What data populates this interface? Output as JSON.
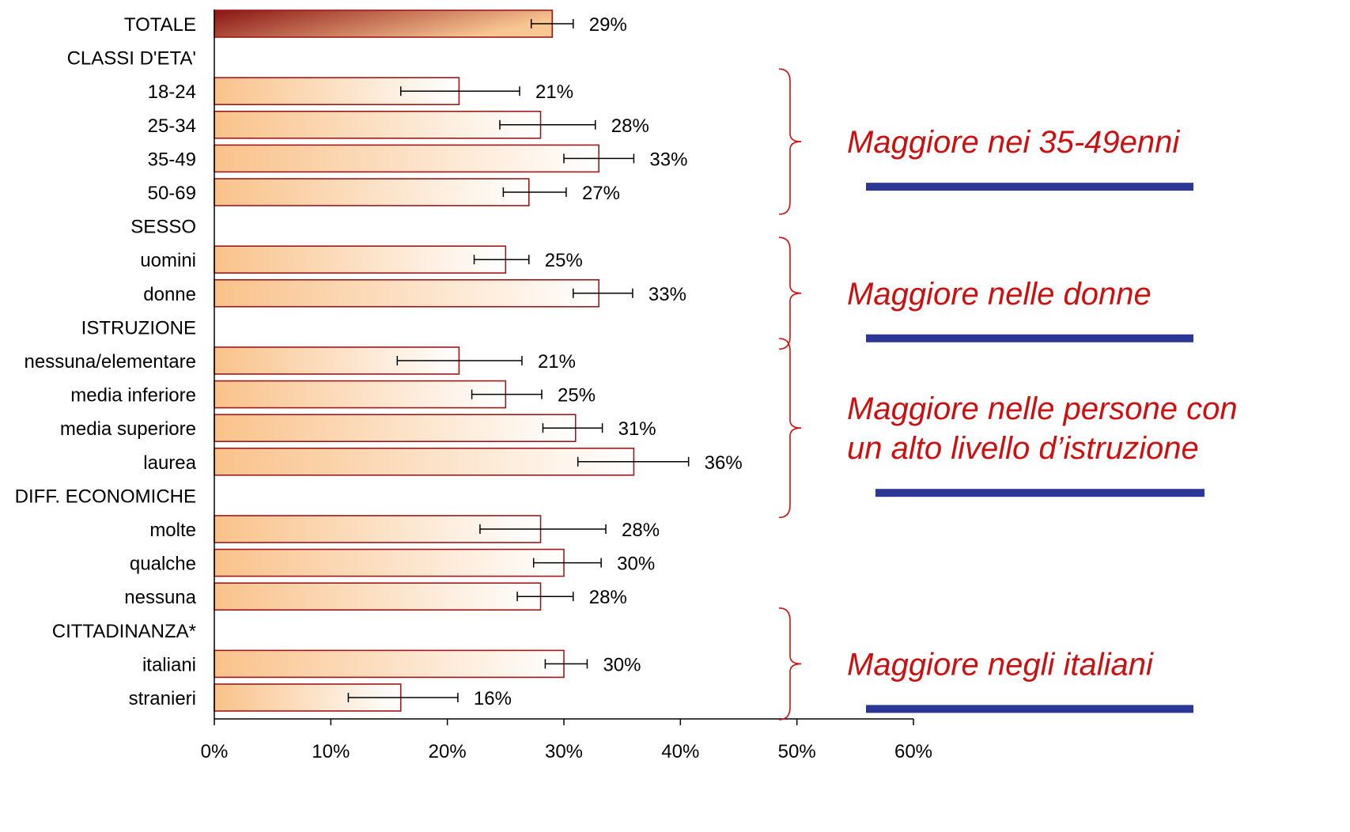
{
  "chart_data": {
    "type": "bar",
    "orientation": "horizontal",
    "title": "",
    "xlabel": "",
    "ylabel": "",
    "xlim": [
      0,
      60
    ],
    "x_ticks": [
      "0%",
      "10%",
      "20%",
      "30%",
      "40%",
      "50%",
      "60%"
    ],
    "grid": false,
    "rows": [
      {
        "label": "TOTALE",
        "value": 29,
        "value_label": "29%",
        "err_low": 27.2,
        "err_high": 30.8,
        "is_total": true
      },
      {
        "label": "CLASSI D'ETA'",
        "is_header": true
      },
      {
        "label": "18-24",
        "value": 21,
        "value_label": "21%",
        "err_low": 16,
        "err_high": 26.2
      },
      {
        "label": "25-34",
        "value": 28,
        "value_label": "28%",
        "err_low": 24.5,
        "err_high": 32.7
      },
      {
        "label": "35-49",
        "value": 33,
        "value_label": "33%",
        "err_low": 30,
        "err_high": 36
      },
      {
        "label": "50-69",
        "value": 27,
        "value_label": "27%",
        "err_low": 24.8,
        "err_high": 30.2
      },
      {
        "label": "SESSO",
        "is_header": true
      },
      {
        "label": "uomini",
        "value": 25,
        "value_label": "25%",
        "err_low": 22.3,
        "err_high": 27
      },
      {
        "label": "donne",
        "value": 33,
        "value_label": "33%",
        "err_low": 30.8,
        "err_high": 35.9
      },
      {
        "label": "ISTRUZIONE",
        "is_header": true
      },
      {
        "label": "nessuna/elementare",
        "value": 21,
        "value_label": "21%",
        "err_low": 15.7,
        "err_high": 26.4
      },
      {
        "label": "media inferiore",
        "value": 25,
        "value_label": "25%",
        "err_low": 22.1,
        "err_high": 28.1
      },
      {
        "label": "media superiore",
        "value": 31,
        "value_label": "31%",
        "err_low": 28.2,
        "err_high": 33.3
      },
      {
        "label": "laurea",
        "value": 36,
        "value_label": "36%",
        "err_low": 31.2,
        "err_high": 40.7
      },
      {
        "label": "DIFF. ECONOMICHE",
        "is_header": true
      },
      {
        "label": "molte",
        "value": 28,
        "value_label": "28%",
        "err_low": 22.8,
        "err_high": 33.6
      },
      {
        "label": "qualche",
        "value": 30,
        "value_label": "30%",
        "err_low": 27.4,
        "err_high": 33.2
      },
      {
        "label": "nessuna",
        "value": 28,
        "value_label": "28%",
        "err_low": 26,
        "err_high": 30.8
      },
      {
        "label": "CITTADINANZA*",
        "is_header": true
      },
      {
        "label": "italiani",
        "value": 30,
        "value_label": "30%",
        "err_low": 28.4,
        "err_high": 32
      },
      {
        "label": "stranieri",
        "value": 16,
        "value_label": "16%",
        "err_low": 11.5,
        "err_high": 20.9
      }
    ],
    "annotations": [
      {
        "lines": [
          "Maggiore nei 35-49enni"
        ],
        "rows_from": 2,
        "rows_to": 5
      },
      {
        "lines": [
          "Maggiore nelle donne"
        ],
        "rows_from": 7,
        "rows_to": 9
      },
      {
        "lines": [
          "Maggiore nelle persone con",
          "un alto livello d’istruzione"
        ],
        "rows_from": 10,
        "rows_to": 14
      },
      {
        "lines": [
          "Maggiore negli italiani"
        ],
        "rows_from": 18,
        "rows_to": 20
      }
    ]
  },
  "colors": {
    "bar_fill_start": "#f9c28a",
    "bar_fill_end": "#ffffff",
    "bar_stroke": "#a01818",
    "total_fill_start": "#8a1414",
    "total_fill_end": "#f9c792",
    "annotation_text": "#cc1010",
    "brace": "#cc1010",
    "underline": "#2b3696",
    "axis": "#000000"
  }
}
